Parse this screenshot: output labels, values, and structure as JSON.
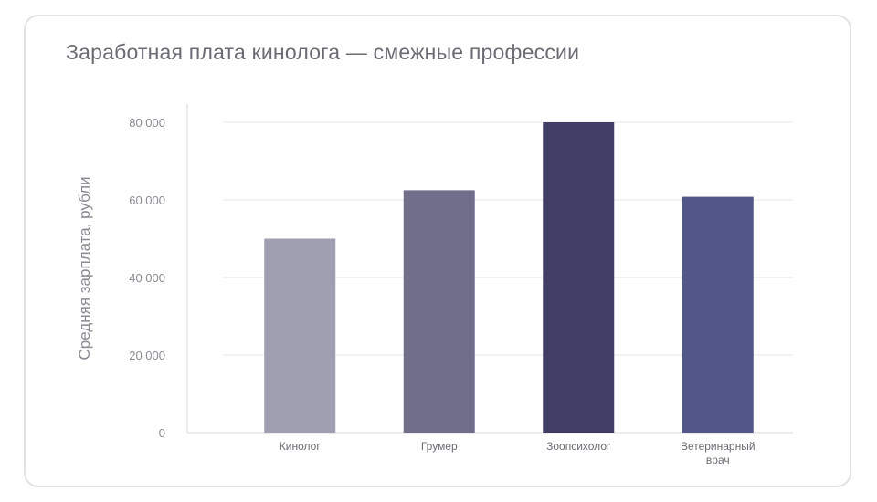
{
  "chart_data": {
    "type": "bar",
    "title": "Заработная плата кинолога — смежные профессии",
    "xlabel": "",
    "ylabel": "Средняя зарплата, рубли",
    "categories": [
      [
        "Кинолог"
      ],
      [
        "Грумер"
      ],
      [
        "Зоопсихолог"
      ],
      [
        "Ветеринарный",
        "врач"
      ]
    ],
    "values": [
      50000,
      62500,
      80000,
      60800
    ],
    "colors": [
      "#9e9fb1",
      "#706e8a",
      "#413e66",
      "#525689"
    ],
    "ylim": [
      0,
      80000
    ],
    "yticks": [
      0,
      20000,
      40000,
      60000,
      80000
    ],
    "ytick_labels": [
      "0",
      "20 000",
      "40 000",
      "60 000",
      "80 000"
    ],
    "grid": true,
    "legend": "none"
  }
}
